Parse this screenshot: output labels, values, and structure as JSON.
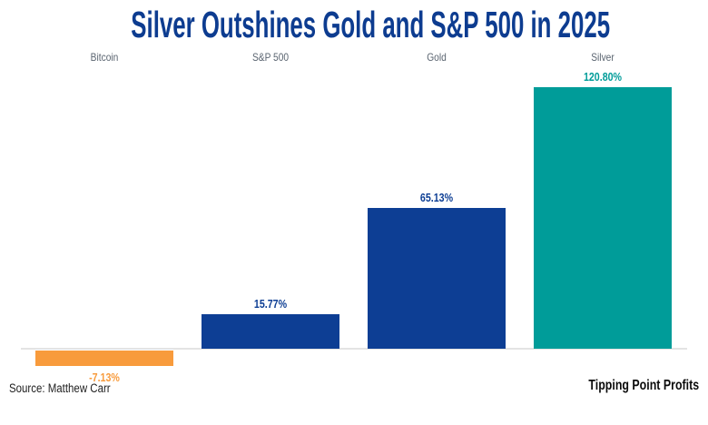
{
  "title": "Silver Outshines Gold and S&P 500 in 2025",
  "source_note": "Source: Matthew Carr",
  "brand": "Tipping Point Profits",
  "colors": {
    "title": "#0D3C90",
    "category_label": "#5A6470",
    "baseline": "#E4E4E4",
    "background": "#FFFFFF",
    "blue_bar": "#0D3E94",
    "teal_bar": "#009C99",
    "orange_bar": "#F89B3C"
  },
  "chart_data": {
    "type": "bar",
    "title": "Silver Outshines Gold and S&P 500 in 2025",
    "categories": [
      "Bitcoin",
      "S&P 500",
      "Gold",
      "Silver"
    ],
    "values": [
      -7.13,
      15.77,
      65.13,
      120.8
    ],
    "value_labels": [
      "-7.13%",
      "15.77%",
      "65.13%",
      "120.80%"
    ],
    "bar_colors": [
      "#F89B3C",
      "#0D3E94",
      "#0D3E94",
      "#009C99"
    ],
    "xlabel": "",
    "ylabel": "",
    "ylim": [
      -25,
      135
    ],
    "grid": false,
    "legend": false,
    "value_label_position": "outside-end",
    "category_label_position": "top-of-plot",
    "baseline_shown": true
  }
}
